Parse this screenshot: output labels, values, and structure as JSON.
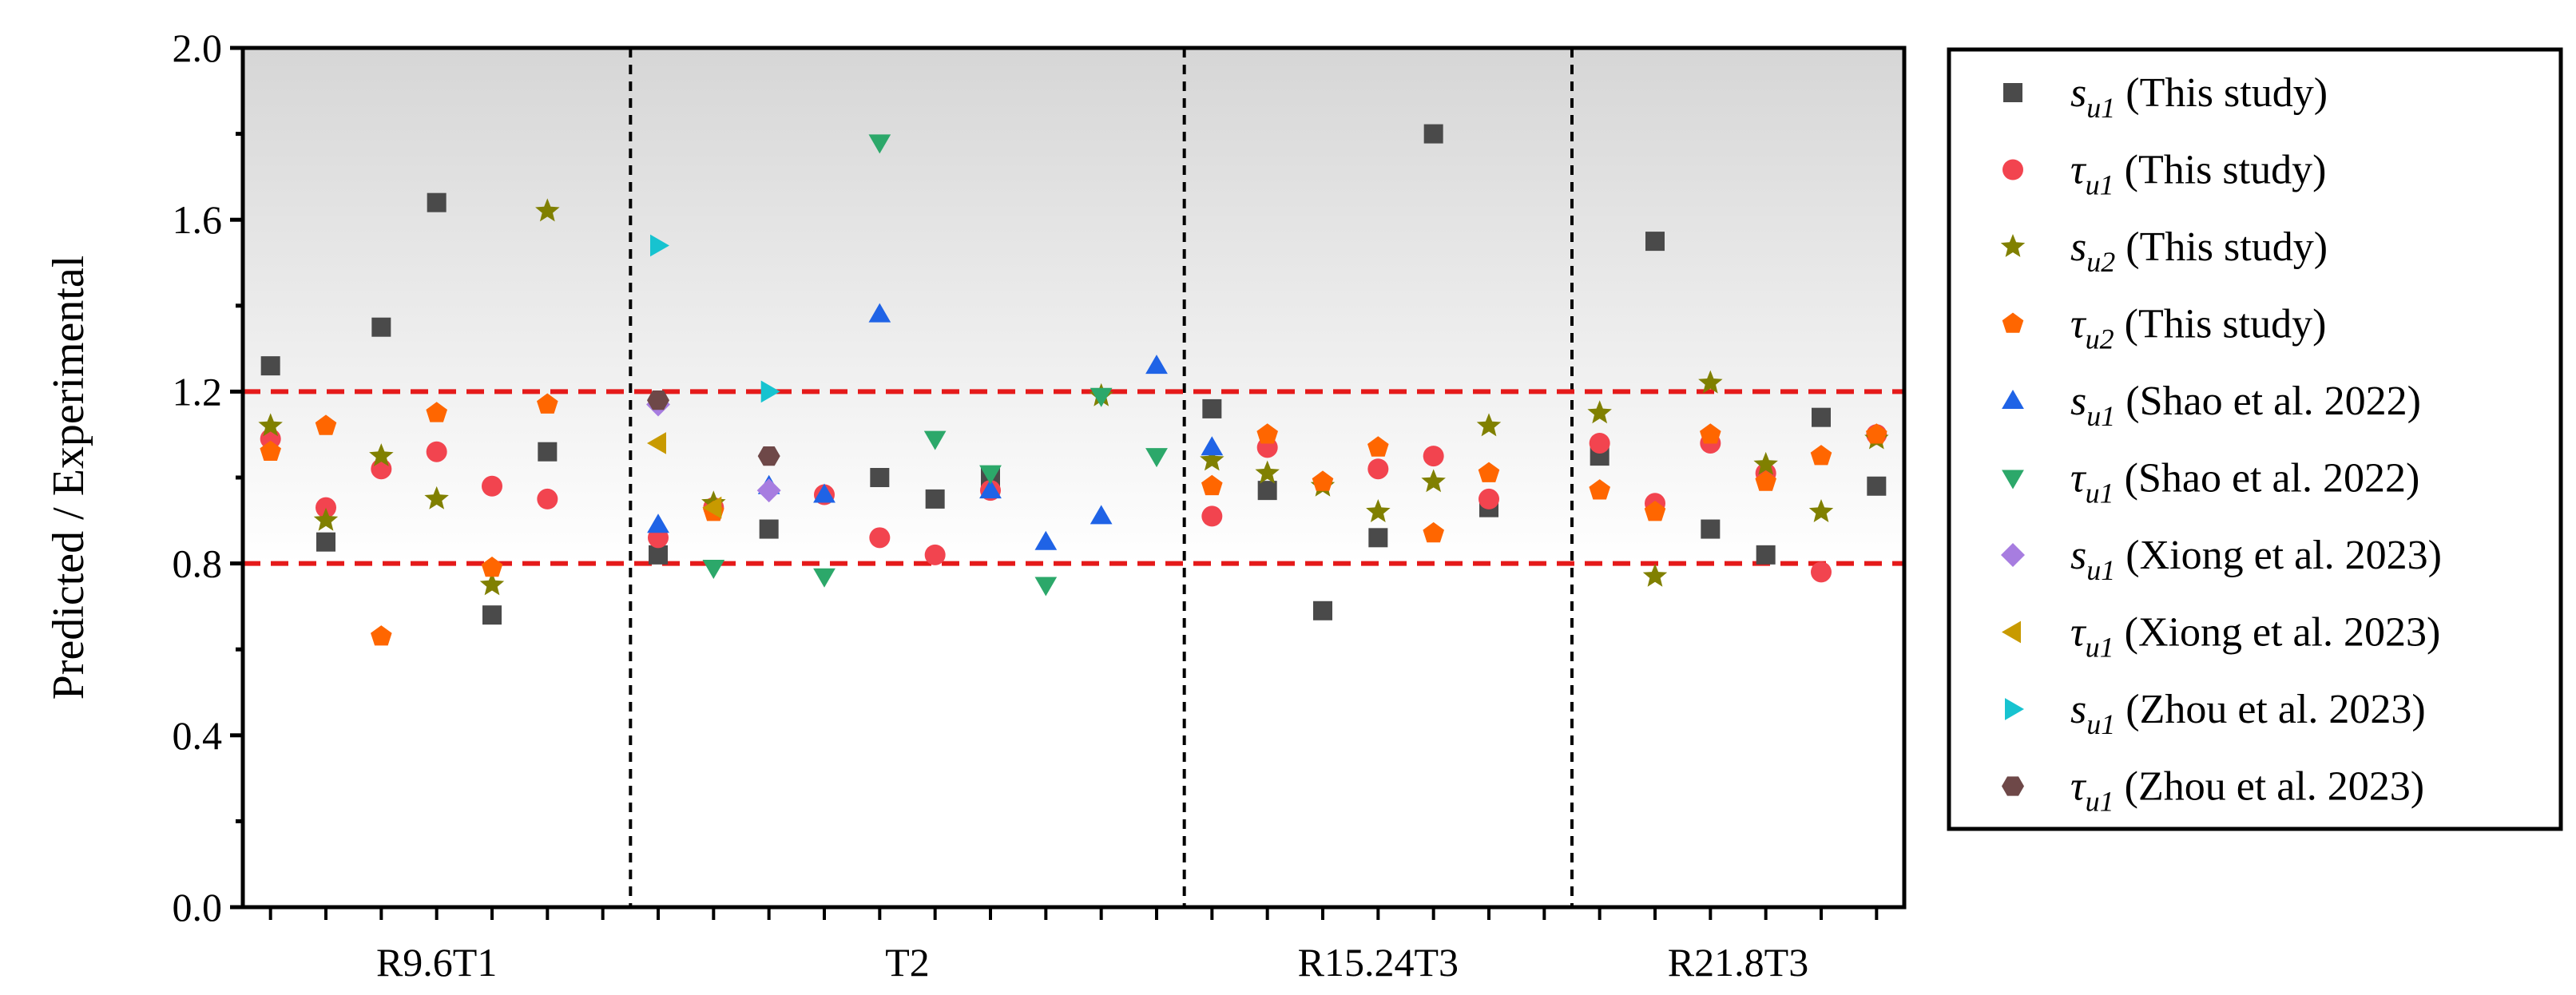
{
  "chart_data": {
    "type": "scatter",
    "title": "",
    "ylabel": "Predicted / Experimental",
    "xlabel": "",
    "ylim": [
      0,
      2.0
    ],
    "yticks": [
      "0.0",
      "0.4",
      "0.8",
      "1.2",
      "1.6",
      "2.0"
    ],
    "groups": [
      {
        "label": "R9.6T1",
        "span": [
          0,
          7
        ]
      },
      {
        "label": "T2",
        "span": [
          7,
          17
        ]
      },
      {
        "label": "R15.24T3",
        "span": [
          17,
          24
        ]
      },
      {
        "label": "R21.8T3",
        "span": [
          24,
          30
        ]
      }
    ],
    "reference_lines": [
      0.8,
      1.2
    ],
    "shading": "gray gradient above 0.8",
    "grid": false,
    "legend_position": "right",
    "series": [
      {
        "key": "s_u1_this",
        "sym": "s",
        "sub": "u1",
        "label": "(This study)",
        "marker": "square",
        "color": "#4a4a4a",
        "points": [
          [
            1,
            1.26
          ],
          [
            2,
            0.85
          ],
          [
            3,
            1.35
          ],
          [
            4,
            1.64
          ],
          [
            5,
            0.68
          ],
          [
            6,
            1.06
          ],
          [
            8,
            0.82
          ],
          [
            10,
            0.88
          ],
          [
            12,
            1.0
          ],
          [
            13,
            0.95
          ],
          [
            14,
            1.0
          ],
          [
            18,
            1.16
          ],
          [
            19,
            0.97
          ],
          [
            20,
            0.69
          ],
          [
            21,
            0.86
          ],
          [
            22,
            1.8
          ],
          [
            23,
            0.93
          ],
          [
            25,
            1.05
          ],
          [
            26,
            1.55
          ],
          [
            27,
            0.88
          ],
          [
            28,
            0.82
          ],
          [
            29,
            1.14
          ],
          [
            30,
            0.98
          ]
        ]
      },
      {
        "key": "tau_u1_this",
        "sym": "τ",
        "sub": "u1",
        "label": " (This study)",
        "marker": "circle",
        "color": "#f2444f",
        "points": [
          [
            1,
            1.09
          ],
          [
            2,
            0.93
          ],
          [
            3,
            1.02
          ],
          [
            4,
            1.06
          ],
          [
            5,
            0.98
          ],
          [
            6,
            0.95
          ],
          [
            8,
            0.86
          ],
          [
            9,
            0.93
          ],
          [
            11,
            0.96
          ],
          [
            12,
            0.86
          ],
          [
            13,
            0.82
          ],
          [
            14,
            0.97
          ],
          [
            18,
            0.91
          ],
          [
            19,
            1.07
          ],
          [
            21,
            1.02
          ],
          [
            22,
            1.05
          ],
          [
            23,
            0.95
          ],
          [
            25,
            1.08
          ],
          [
            26,
            0.94
          ],
          [
            27,
            1.08
          ],
          [
            28,
            1.01
          ],
          [
            29,
            0.78
          ],
          [
            30,
            1.1
          ]
        ]
      },
      {
        "key": "s_u2_this",
        "sym": "s",
        "sub": "u2",
        "label": " (This study)",
        "marker": "star",
        "color": "#808000",
        "points": [
          [
            1,
            1.12
          ],
          [
            2,
            0.9
          ],
          [
            3,
            1.05
          ],
          [
            4,
            0.95
          ],
          [
            5,
            0.75
          ],
          [
            6,
            1.62
          ],
          [
            9,
            0.94
          ],
          [
            16,
            1.19
          ],
          [
            18,
            1.04
          ],
          [
            19,
            1.01
          ],
          [
            20,
            0.98
          ],
          [
            21,
            0.92
          ],
          [
            22,
            0.99
          ],
          [
            23,
            1.12
          ],
          [
            25,
            1.15
          ],
          [
            26,
            0.77
          ],
          [
            27,
            1.22
          ],
          [
            28,
            1.03
          ],
          [
            29,
            0.92
          ],
          [
            30,
            1.09
          ]
        ]
      },
      {
        "key": "tau_u2_this",
        "sym": "τ",
        "sub": "u2",
        "label": " (This study)",
        "marker": "pentagon",
        "color": "#ff6600",
        "points": [
          [
            1,
            1.06
          ],
          [
            2,
            1.12
          ],
          [
            3,
            0.63
          ],
          [
            4,
            1.15
          ],
          [
            5,
            0.79
          ],
          [
            6,
            1.17
          ],
          [
            9,
            0.92
          ],
          [
            18,
            0.98
          ],
          [
            19,
            1.1
          ],
          [
            20,
            0.99
          ],
          [
            21,
            1.07
          ],
          [
            22,
            0.87
          ],
          [
            23,
            1.01
          ],
          [
            25,
            0.97
          ],
          [
            26,
            0.92
          ],
          [
            27,
            1.1
          ],
          [
            28,
            0.99
          ],
          [
            29,
            1.05
          ],
          [
            30,
            1.1
          ]
        ]
      },
      {
        "key": "s_u1_shao",
        "sym": "s",
        "sub": "u1",
        "label": " (Shao et al. 2022)",
        "marker": "triangle-up",
        "color": "#1f63e6",
        "points": [
          [
            8,
            0.89
          ],
          [
            10,
            0.98
          ],
          [
            11,
            0.96
          ],
          [
            12,
            1.38
          ],
          [
            14,
            0.97
          ],
          [
            15,
            0.85
          ],
          [
            16,
            0.91
          ],
          [
            17,
            1.26
          ],
          [
            18,
            1.07
          ]
        ]
      },
      {
        "key": "tau_u1_shao",
        "sym": "τ",
        "sub": "u1",
        "label": " (Shao et al. 2022)",
        "marker": "triangle-down",
        "color": "#2ca86a",
        "points": [
          [
            9,
            0.79
          ],
          [
            11,
            0.77
          ],
          [
            12,
            1.78
          ],
          [
            13,
            1.09
          ],
          [
            14,
            1.01
          ],
          [
            15,
            0.75
          ],
          [
            16,
            1.19
          ],
          [
            17,
            1.05
          ]
        ]
      },
      {
        "key": "s_u1_xiong",
        "sym": "s",
        "sub": "u1",
        "label": " (Xiong et al. 2023)",
        "marker": "diamond",
        "color": "#a77de0",
        "points": [
          [
            8,
            1.17
          ],
          [
            10,
            0.97
          ]
        ]
      },
      {
        "key": "tau_u1_xiong",
        "sym": "τ",
        "sub": "u1",
        "label": " (Xiong et al. 2023)",
        "marker": "triangle-left",
        "color": "#c89a00",
        "points": [
          [
            8,
            1.08
          ],
          [
            9,
            0.93
          ]
        ]
      },
      {
        "key": "s_u1_zhou",
        "sym": "s",
        "sub": "u1",
        "label": " (Zhou et al. 2023)",
        "marker": "triangle-right",
        "color": "#17c3d0",
        "points": [
          [
            8,
            1.54
          ],
          [
            10,
            1.2
          ]
        ]
      },
      {
        "key": "tau_u1_zhou",
        "sym": "τ",
        "sub": "u1",
        "label": " (Zhou et al. 2023)",
        "marker": "hexagon",
        "color": "#6e4848",
        "points": [
          [
            8,
            1.18
          ],
          [
            10,
            1.05
          ]
        ]
      }
    ]
  }
}
